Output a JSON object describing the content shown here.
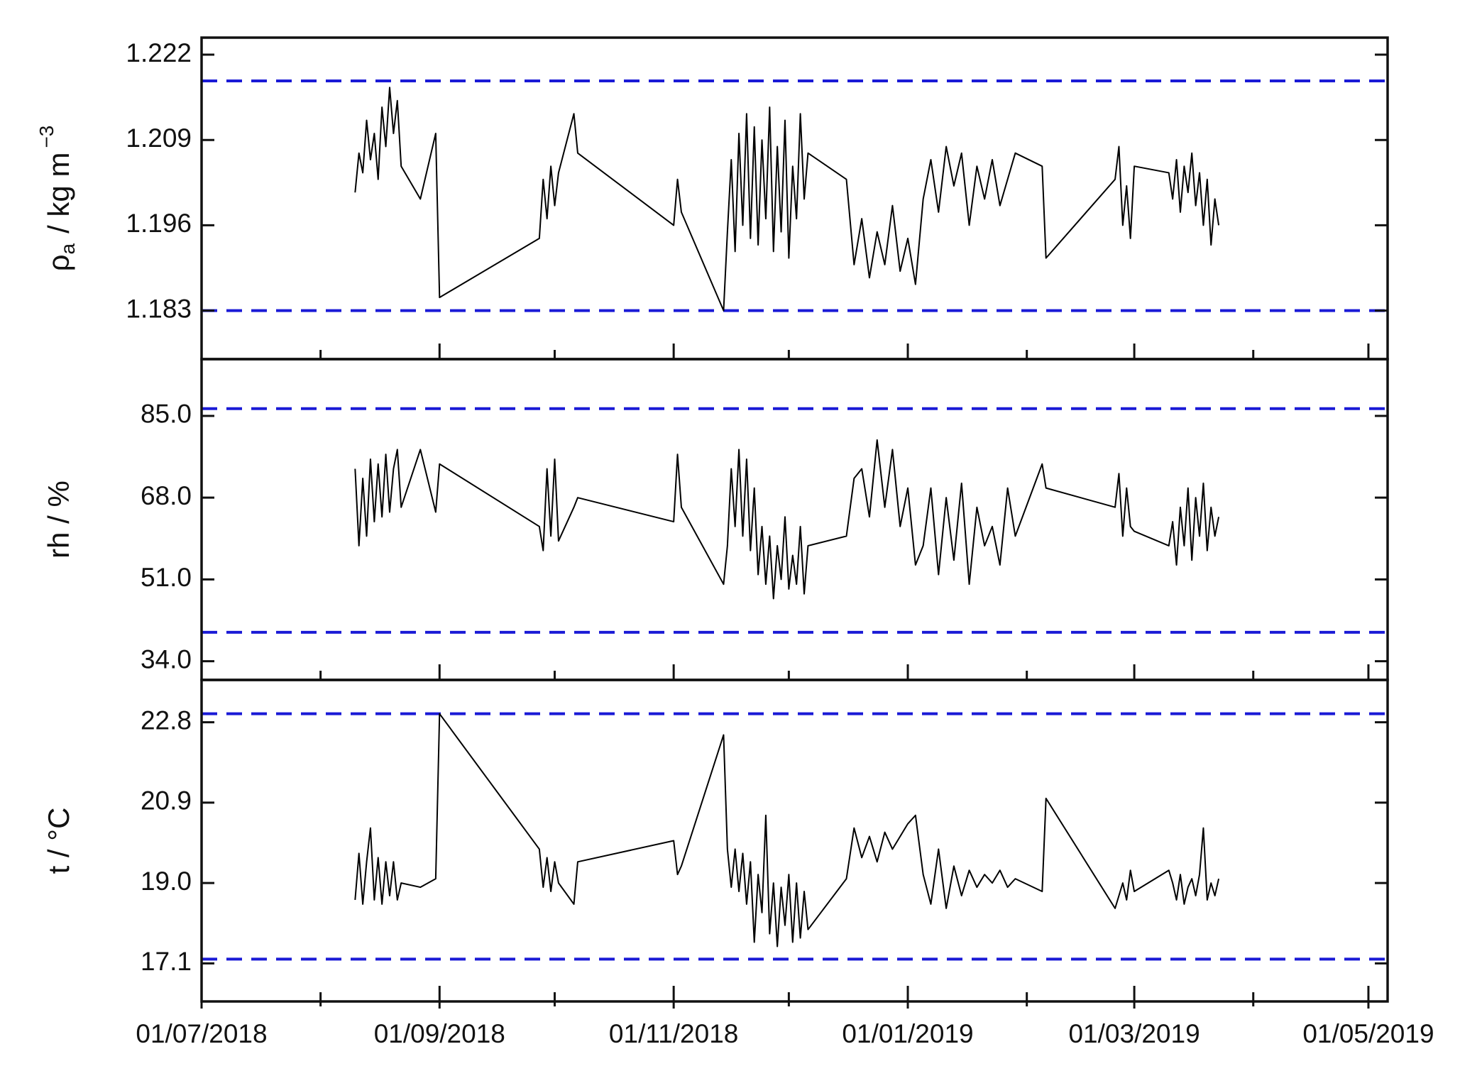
{
  "chart_data": [
    {
      "type": "line",
      "ylabel": {
        "symbol": "ρ",
        "subscript": "a",
        "unit": "/ kg m",
        "superscript": "−3"
      },
      "ylim": [
        1.1756,
        1.2246
      ],
      "yticks": [
        1.183,
        1.196,
        1.209,
        1.222
      ],
      "reference_lines": [
        1.218,
        1.183
      ],
      "reference_color": "#1a1ad6",
      "color": "#000000",
      "x": [
        "2018-08-10",
        "2018-08-11",
        "2018-08-12",
        "2018-08-13",
        "2018-08-14",
        "2018-08-15",
        "2018-08-16",
        "2018-08-17",
        "2018-08-18",
        "2018-08-19",
        "2018-08-20",
        "2018-08-21",
        "2018-08-22",
        "2018-08-27",
        "2018-08-31",
        "2018-09-01",
        "2018-09-27",
        "2018-09-28",
        "2018-09-29",
        "2018-09-30",
        "2018-10-01",
        "2018-10-02",
        "2018-10-06",
        "2018-10-07",
        "2018-11-01",
        "2018-11-02",
        "2018-11-03",
        "2018-11-14",
        "2018-11-15",
        "2018-11-16",
        "2018-11-17",
        "2018-11-18",
        "2018-11-19",
        "2018-11-20",
        "2018-11-21",
        "2018-11-22",
        "2018-11-23",
        "2018-11-24",
        "2018-11-25",
        "2018-11-26",
        "2018-11-27",
        "2018-11-28",
        "2018-11-29",
        "2018-11-30",
        "2018-12-01",
        "2018-12-02",
        "2018-12-03",
        "2018-12-04",
        "2018-12-05",
        "2018-12-06",
        "2018-12-16",
        "2018-12-18",
        "2018-12-20",
        "2018-12-22",
        "2018-12-24",
        "2018-12-26",
        "2018-12-28",
        "2018-12-30",
        "2019-01-01",
        "2019-01-03",
        "2019-01-05",
        "2019-01-07",
        "2019-01-09",
        "2019-01-11",
        "2019-01-13",
        "2019-01-15",
        "2019-01-17",
        "2019-01-19",
        "2019-01-21",
        "2019-01-23",
        "2019-01-25",
        "2019-01-27",
        "2019-01-29",
        "2019-02-05",
        "2019-02-06",
        "2019-02-24",
        "2019-02-25",
        "2019-02-26",
        "2019-02-27",
        "2019-02-28",
        "2019-03-01",
        "2019-03-10",
        "2019-03-11",
        "2019-03-12",
        "2019-03-13",
        "2019-03-14",
        "2019-03-15",
        "2019-03-16",
        "2019-03-17",
        "2019-03-18",
        "2019-03-19",
        "2019-03-20",
        "2019-03-21",
        "2019-03-22",
        "2019-03-23"
      ],
      "values": [
        1.201,
        1.207,
        1.204,
        1.212,
        1.206,
        1.21,
        1.203,
        1.214,
        1.208,
        1.217,
        1.21,
        1.215,
        1.205,
        1.2,
        1.21,
        1.185,
        1.194,
        1.203,
        1.197,
        1.205,
        1.199,
        1.204,
        1.213,
        1.207,
        1.196,
        1.203,
        1.198,
        1.183,
        1.195,
        1.206,
        1.192,
        1.21,
        1.196,
        1.213,
        1.194,
        1.211,
        1.193,
        1.209,
        1.197,
        1.214,
        1.192,
        1.208,
        1.195,
        1.212,
        1.191,
        1.205,
        1.197,
        1.213,
        1.2,
        1.207,
        1.203,
        1.19,
        1.197,
        1.188,
        1.195,
        1.19,
        1.199,
        1.189,
        1.194,
        1.187,
        1.2,
        1.206,
        1.198,
        1.208,
        1.202,
        1.207,
        1.196,
        1.205,
        1.2,
        1.206,
        1.199,
        1.203,
        1.207,
        1.205,
        1.191,
        1.203,
        1.208,
        1.196,
        1.202,
        1.194,
        1.205,
        1.204,
        1.2,
        1.206,
        1.198,
        1.205,
        1.201,
        1.207,
        1.199,
        1.204,
        1.196,
        1.203,
        1.193,
        1.2,
        1.196
      ]
    },
    {
      "type": "line",
      "ylabel": "rh / %",
      "ylim": [
        30.1,
        96.8
      ],
      "yticks": [
        {
          "value": 34,
          "label": "34.0"
        },
        {
          "value": 51,
          "label": "51.0"
        },
        {
          "value": 68,
          "label": "68.0"
        },
        {
          "value": 85,
          "label": "85.0"
        }
      ],
      "reference_lines": [
        86.5,
        40
      ],
      "reference_color": "#1a1ad6",
      "color": "#000000",
      "x": [
        "2018-08-10",
        "2018-08-11",
        "2018-08-12",
        "2018-08-13",
        "2018-08-14",
        "2018-08-15",
        "2018-08-16",
        "2018-08-17",
        "2018-08-18",
        "2018-08-19",
        "2018-08-20",
        "2018-08-21",
        "2018-08-22",
        "2018-08-27",
        "2018-08-31",
        "2018-09-01",
        "2018-09-27",
        "2018-09-28",
        "2018-09-29",
        "2018-09-30",
        "2018-10-01",
        "2018-10-02",
        "2018-10-06",
        "2018-10-07",
        "2018-11-01",
        "2018-11-02",
        "2018-11-03",
        "2018-11-14",
        "2018-11-15",
        "2018-11-16",
        "2018-11-17",
        "2018-11-18",
        "2018-11-19",
        "2018-11-20",
        "2018-11-21",
        "2018-11-22",
        "2018-11-23",
        "2018-11-24",
        "2018-11-25",
        "2018-11-26",
        "2018-11-27",
        "2018-11-28",
        "2018-11-29",
        "2018-11-30",
        "2018-12-01",
        "2018-12-02",
        "2018-12-03",
        "2018-12-04",
        "2018-12-05",
        "2018-12-06",
        "2018-12-16",
        "2018-12-18",
        "2018-12-20",
        "2018-12-22",
        "2018-12-24",
        "2018-12-26",
        "2018-12-28",
        "2018-12-30",
        "2019-01-01",
        "2019-01-03",
        "2019-01-05",
        "2019-01-07",
        "2019-01-09",
        "2019-01-11",
        "2019-01-13",
        "2019-01-15",
        "2019-01-17",
        "2019-01-19",
        "2019-01-21",
        "2019-01-23",
        "2019-01-25",
        "2019-01-27",
        "2019-01-29",
        "2019-02-05",
        "2019-02-06",
        "2019-02-24",
        "2019-02-25",
        "2019-02-26",
        "2019-02-27",
        "2019-02-28",
        "2019-03-01",
        "2019-03-10",
        "2019-03-11",
        "2019-03-12",
        "2019-03-13",
        "2019-03-14",
        "2019-03-15",
        "2019-03-16",
        "2019-03-17",
        "2019-03-18",
        "2019-03-19",
        "2019-03-20",
        "2019-03-21",
        "2019-03-22",
        "2019-03-23"
      ],
      "values": [
        74,
        58,
        72,
        60,
        76,
        63,
        75,
        64,
        77,
        65,
        74,
        78,
        66,
        78,
        65,
        75,
        62,
        57,
        74,
        60,
        76,
        59,
        66,
        68,
        63,
        77,
        66,
        50,
        58,
        74,
        62,
        78,
        60,
        76,
        57,
        70,
        52,
        62,
        50,
        60,
        47,
        58,
        51,
        64,
        49,
        56,
        50,
        62,
        48,
        58,
        60,
        72,
        74,
        64,
        80,
        66,
        78,
        62,
        70,
        54,
        58,
        70,
        52,
        68,
        55,
        71,
        50,
        66,
        58,
        62,
        54,
        70,
        60,
        75,
        70,
        66,
        73,
        60,
        70,
        62,
        61,
        58,
        63,
        54,
        66,
        58,
        70,
        55,
        68,
        60,
        71,
        57,
        66,
        60,
        64
      ]
    },
    {
      "type": "line",
      "ylabel": "t / °C",
      "ylim": [
        16.2,
        23.8
      ],
      "yticks": [
        17.1,
        {
          "value": 19,
          "label": "19.0"
        },
        20.9,
        22.8
      ],
      "reference_lines": [
        23.0,
        17.2
      ],
      "reference_color": "#1a1ad6",
      "color": "#000000",
      "xlim": [
        "2018-07-01",
        "2019-05-06"
      ],
      "xticks": [
        {
          "value": "2018-07-01",
          "label": "01/07/2018"
        },
        {
          "value": "2018-09-01",
          "label": "01/09/2018"
        },
        {
          "value": "2018-11-01",
          "label": "01/11/2018"
        },
        {
          "value": "2019-01-01",
          "label": "01/01/2019"
        },
        {
          "value": "2019-03-01",
          "label": "01/03/2019"
        },
        {
          "value": "2019-05-01",
          "label": "01/05/2019"
        }
      ],
      "xminorticks": [
        "2018-08-01",
        "2018-10-01",
        "2018-12-01",
        "2019-02-01",
        "2019-04-01"
      ],
      "x": [
        "2018-08-10",
        "2018-08-11",
        "2018-08-12",
        "2018-08-13",
        "2018-08-14",
        "2018-08-15",
        "2018-08-16",
        "2018-08-17",
        "2018-08-18",
        "2018-08-19",
        "2018-08-20",
        "2018-08-21",
        "2018-08-22",
        "2018-08-27",
        "2018-08-31",
        "2018-09-01",
        "2018-09-27",
        "2018-09-28",
        "2018-09-29",
        "2018-09-30",
        "2018-10-01",
        "2018-10-02",
        "2018-10-06",
        "2018-10-07",
        "2018-11-01",
        "2018-11-02",
        "2018-11-03",
        "2018-11-14",
        "2018-11-15",
        "2018-11-16",
        "2018-11-17",
        "2018-11-18",
        "2018-11-19",
        "2018-11-20",
        "2018-11-21",
        "2018-11-22",
        "2018-11-23",
        "2018-11-24",
        "2018-11-25",
        "2018-11-26",
        "2018-11-27",
        "2018-11-28",
        "2018-11-29",
        "2018-11-30",
        "2018-12-01",
        "2018-12-02",
        "2018-12-03",
        "2018-12-04",
        "2018-12-05",
        "2018-12-06",
        "2018-12-16",
        "2018-12-18",
        "2018-12-20",
        "2018-12-22",
        "2018-12-24",
        "2018-12-26",
        "2018-12-28",
        "2018-12-30",
        "2019-01-01",
        "2019-01-03",
        "2019-01-05",
        "2019-01-07",
        "2019-01-09",
        "2019-01-11",
        "2019-01-13",
        "2019-01-15",
        "2019-01-17",
        "2019-01-19",
        "2019-01-21",
        "2019-01-23",
        "2019-01-25",
        "2019-01-27",
        "2019-01-29",
        "2019-02-05",
        "2019-02-06",
        "2019-02-24",
        "2019-02-25",
        "2019-02-26",
        "2019-02-27",
        "2019-02-28",
        "2019-03-01",
        "2019-03-10",
        "2019-03-11",
        "2019-03-12",
        "2019-03-13",
        "2019-03-14",
        "2019-03-15",
        "2019-03-16",
        "2019-03-17",
        "2019-03-18",
        "2019-03-19",
        "2019-03-20",
        "2019-03-21",
        "2019-03-22",
        "2019-03-23"
      ],
      "values": [
        18.6,
        19.7,
        18.5,
        19.5,
        20.3,
        18.6,
        19.6,
        18.5,
        19.5,
        18.7,
        19.5,
        18.6,
        19.0,
        18.9,
        19.1,
        23.0,
        19.8,
        18.9,
        19.6,
        18.8,
        19.5,
        19.0,
        18.5,
        19.5,
        20.0,
        19.2,
        19.4,
        22.5,
        19.8,
        18.9,
        19.8,
        18.8,
        19.7,
        18.5,
        19.5,
        17.6,
        19.2,
        18.3,
        20.6,
        17.8,
        19.0,
        17.5,
        18.9,
        18.0,
        19.2,
        17.6,
        19.0,
        17.7,
        18.8,
        17.9,
        19.1,
        20.3,
        19.6,
        20.1,
        19.5,
        20.2,
        19.8,
        20.1,
        20.4,
        20.6,
        19.2,
        18.5,
        19.8,
        18.4,
        19.4,
        18.7,
        19.3,
        18.9,
        19.2,
        19.0,
        19.3,
        18.9,
        19.1,
        18.8,
        21.0,
        18.4,
        18.7,
        19.0,
        18.6,
        19.3,
        18.8,
        19.3,
        19.0,
        18.6,
        19.2,
        18.5,
        18.9,
        19.1,
        18.7,
        19.2,
        20.3,
        18.6,
        19.0,
        18.7,
        19.1
      ]
    }
  ]
}
